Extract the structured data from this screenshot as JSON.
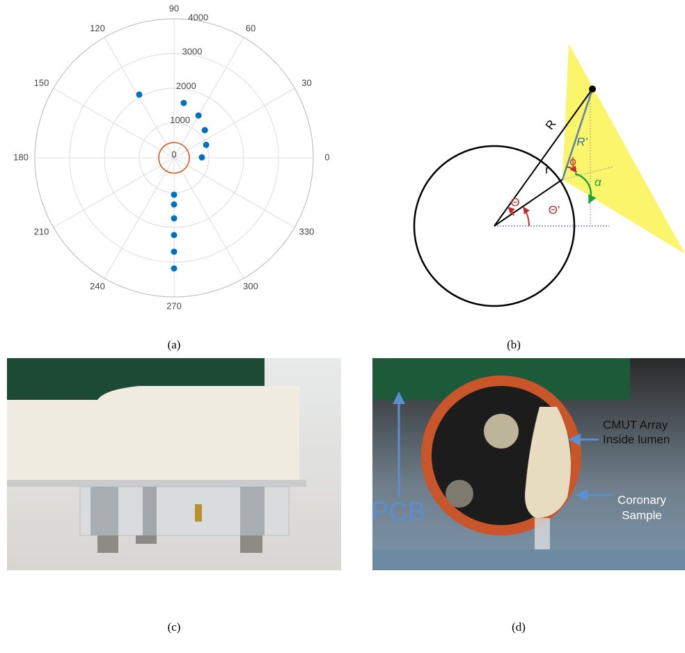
{
  "chart_data": {
    "type": "polar",
    "x": [
      118.8,
      80,
      60,
      42,
      22,
      1,
      270,
      270,
      270,
      270,
      270,
      270
    ],
    "values": [
      2076,
      1604,
      1406,
      1190,
      996,
      800,
      1060,
      1340,
      1740,
      2220,
      2700,
      3180
    ],
    "color": "#0072bd",
    "circle": {
      "value": 440,
      "color": "#d95319"
    },
    "rlim": [
      0,
      4000
    ],
    "rticks": [
      0,
      1000,
      2000,
      3000,
      4000
    ],
    "xticks": [
      0,
      30,
      60,
      90,
      120,
      150,
      180,
      210,
      240,
      270,
      300,
      330
    ],
    "grid": true
  },
  "diagram": {
    "labels": {
      "R": "R",
      "R_prime": "R'",
      "r": "r",
      "phi": "ϕ",
      "alpha": "α",
      "theta": "Θ",
      "theta_prime": "Θ'"
    }
  },
  "photo_d": {
    "pcb": "PCB",
    "cmut": [
      "CMUT Array",
      "Inside lumen"
    ],
    "sample": [
      "Coronary",
      "Sample"
    ]
  },
  "captions": [
    "(a)",
    "(b)",
    "(c)",
    "(d)"
  ]
}
